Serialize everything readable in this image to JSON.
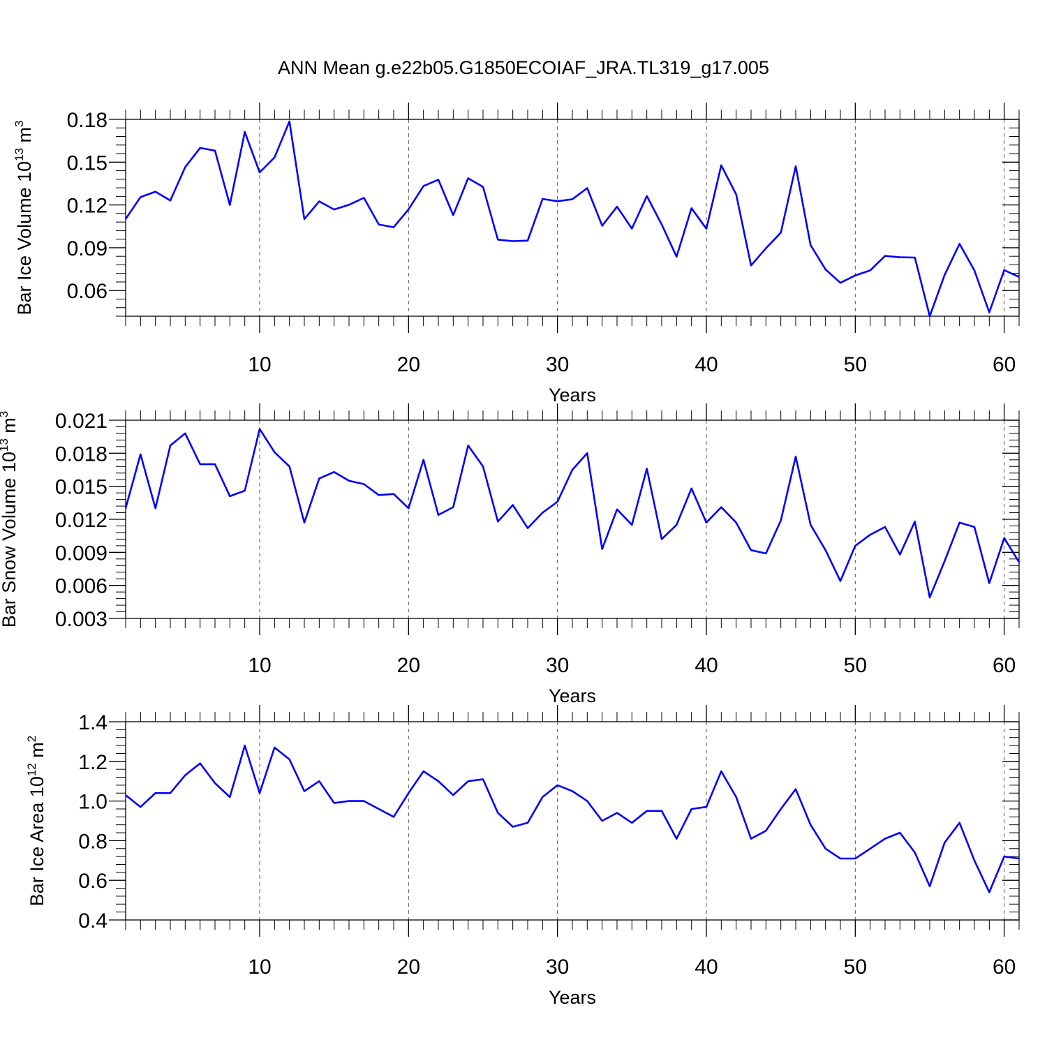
{
  "title": "ANN Mean g.e22b05.G1850ECOIAF_JRA.TL319_g17.005",
  "colors": {
    "line": "#0000ff",
    "axis": "#000000",
    "grid": "#555555"
  },
  "chart_data": [
    {
      "type": "line",
      "xlabel": "Years",
      "ylabel": {
        "text": "Bar Ice Volume 10",
        "sup": "13",
        "unit": " m",
        "unit_sup": "3"
      },
      "xlim": [
        1,
        61
      ],
      "ylim": [
        0.042,
        0.18
      ],
      "xticks": [
        10,
        20,
        30,
        40,
        50,
        60
      ],
      "xtick_labels": [
        "10",
        "20",
        "30",
        "40",
        "50",
        "60"
      ],
      "yticks": [
        0.06,
        0.09,
        0.12,
        0.15,
        0.18
      ],
      "ytick_labels": [
        "0.06",
        "0.09",
        "0.12",
        "0.15",
        "0.18"
      ],
      "grid_x": true,
      "x": [
        1,
        2,
        3,
        4,
        5,
        6,
        7,
        8,
        9,
        10,
        11,
        12,
        13,
        14,
        15,
        16,
        17,
        18,
        19,
        20,
        21,
        22,
        23,
        24,
        25,
        26,
        27,
        28,
        29,
        30,
        31,
        32,
        33,
        34,
        35,
        36,
        37,
        38,
        39,
        40,
        41,
        42,
        43,
        44,
        45,
        46,
        47,
        48,
        49,
        50,
        51,
        52,
        53,
        54,
        55,
        56,
        57,
        58,
        59,
        60,
        61
      ],
      "y": [
        0.1101,
        0.1255,
        0.1293,
        0.1231,
        0.1465,
        0.16,
        0.1581,
        0.12,
        0.1712,
        0.1428,
        0.1533,
        0.1786,
        0.1101,
        0.1225,
        0.1168,
        0.1201,
        0.125,
        0.1063,
        0.1044,
        0.1169,
        0.1332,
        0.1377,
        0.1128,
        0.1387,
        0.1327,
        0.0957,
        0.0946,
        0.095,
        0.1242,
        0.1226,
        0.124,
        0.1318,
        0.1054,
        0.1188,
        0.1034,
        0.1262,
        0.1063,
        0.0837,
        0.1177,
        0.1033,
        0.1478,
        0.1274,
        0.0776,
        0.0896,
        0.1006,
        0.1471,
        0.0918,
        0.0748,
        0.0654,
        0.0706,
        0.0741,
        0.0843,
        0.0833,
        0.0831,
        0.042,
        0.0709,
        0.0927,
        0.0741,
        0.0447,
        0.0743,
        0.0695
      ]
    },
    {
      "type": "line",
      "xlabel": "Years",
      "ylabel": {
        "text": "Bar Snow Volume 10",
        "sup": "13",
        "unit": " m",
        "unit_sup": "3"
      },
      "xlim": [
        1,
        61
      ],
      "ylim": [
        0.003,
        0.021
      ],
      "xticks": [
        10,
        20,
        30,
        40,
        50,
        60
      ],
      "xtick_labels": [
        "10",
        "20",
        "30",
        "40",
        "50",
        "60"
      ],
      "yticks": [
        0.003,
        0.006,
        0.009,
        0.012,
        0.015,
        0.018,
        0.021
      ],
      "ytick_labels": [
        "0.003",
        "0.006",
        "0.009",
        "0.012",
        "0.015",
        "0.018",
        "0.021"
      ],
      "grid_x": true,
      "x": [
        1,
        2,
        3,
        4,
        5,
        6,
        7,
        8,
        9,
        10,
        11,
        12,
        13,
        14,
        15,
        16,
        17,
        18,
        19,
        20,
        21,
        22,
        23,
        24,
        25,
        26,
        27,
        28,
        29,
        30,
        31,
        32,
        33,
        34,
        35,
        36,
        37,
        38,
        39,
        40,
        41,
        42,
        43,
        44,
        45,
        46,
        47,
        48,
        49,
        50,
        51,
        52,
        53,
        54,
        55,
        56,
        57,
        58,
        59,
        60,
        61
      ],
      "y": [
        0.013,
        0.0179,
        0.013,
        0.0187,
        0.0198,
        0.017,
        0.017,
        0.0141,
        0.0146,
        0.0202,
        0.0181,
        0.0168,
        0.0117,
        0.0157,
        0.0163,
        0.0155,
        0.0152,
        0.0142,
        0.0143,
        0.013,
        0.0174,
        0.0124,
        0.0131,
        0.0187,
        0.0168,
        0.0118,
        0.0133,
        0.0112,
        0.0126,
        0.0136,
        0.0165,
        0.018,
        0.0093,
        0.0129,
        0.0115,
        0.0166,
        0.0102,
        0.0115,
        0.0148,
        0.0117,
        0.0131,
        0.0117,
        0.0092,
        0.0089,
        0.0119,
        0.0177,
        0.0115,
        0.0092,
        0.0064,
        0.0096,
        0.0106,
        0.0113,
        0.0088,
        0.0118,
        0.0049,
        0.0082,
        0.0117,
        0.0113,
        0.0062,
        0.0103,
        0.0081
      ]
    },
    {
      "type": "line",
      "xlabel": "Years",
      "ylabel": {
        "text": "Bar Ice Area 10",
        "sup": "12",
        "unit": " m",
        "unit_sup": "2"
      },
      "xlim": [
        1,
        61
      ],
      "ylim": [
        0.4,
        1.4
      ],
      "xticks": [
        10,
        20,
        30,
        40,
        50,
        60
      ],
      "xtick_labels": [
        "10",
        "20",
        "30",
        "40",
        "50",
        "60"
      ],
      "yticks": [
        0.4,
        0.6,
        0.8,
        1.0,
        1.2,
        1.4
      ],
      "ytick_labels": [
        "0.4",
        "0.6",
        "0.8",
        "1.0",
        "1.2",
        "1.4"
      ],
      "grid_x": true,
      "x": [
        1,
        2,
        3,
        4,
        5,
        6,
        7,
        8,
        9,
        10,
        11,
        12,
        13,
        14,
        15,
        16,
        17,
        18,
        19,
        20,
        21,
        22,
        23,
        24,
        25,
        26,
        27,
        28,
        29,
        30,
        31,
        32,
        33,
        34,
        35,
        36,
        37,
        38,
        39,
        40,
        41,
        42,
        43,
        44,
        45,
        46,
        47,
        48,
        49,
        50,
        51,
        52,
        53,
        54,
        55,
        56,
        57,
        58,
        59,
        60,
        61
      ],
      "y": [
        1.03,
        0.97,
        1.04,
        1.04,
        1.13,
        1.19,
        1.09,
        1.02,
        1.28,
        1.04,
        1.27,
        1.21,
        1.05,
        1.1,
        0.99,
        1.0,
        1.0,
        0.96,
        0.92,
        1.04,
        1.15,
        1.1,
        1.03,
        1.1,
        1.11,
        0.94,
        0.87,
        0.89,
        1.02,
        1.08,
        1.05,
        1.0,
        0.9,
        0.94,
        0.89,
        0.95,
        0.95,
        0.81,
        0.96,
        0.97,
        1.15,
        1.02,
        0.81,
        0.85,
        0.96,
        1.06,
        0.88,
        0.76,
        0.71,
        0.71,
        0.76,
        0.81,
        0.84,
        0.74,
        0.57,
        0.79,
        0.89,
        0.7,
        0.54,
        0.72,
        0.71
      ]
    }
  ]
}
